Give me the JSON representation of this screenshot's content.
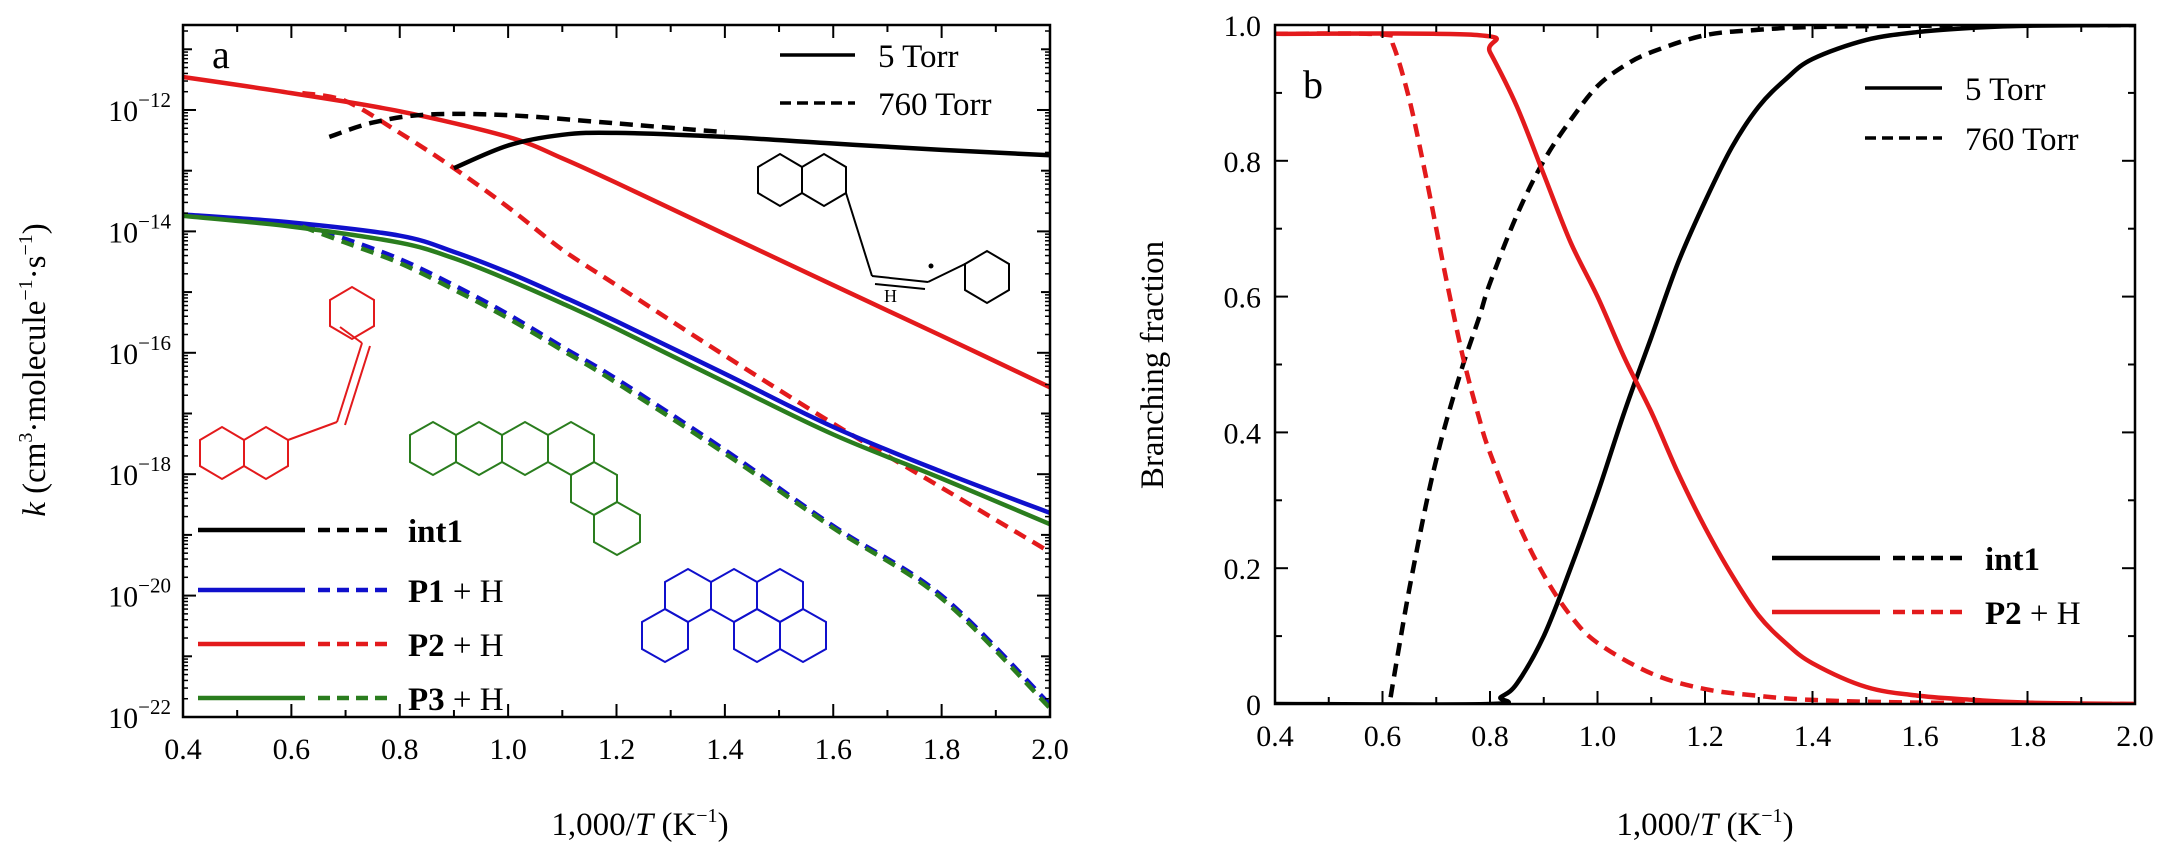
{
  "colors": {
    "int1": "#000000",
    "P1": "#1010cc",
    "P2": "#e31a1c",
    "P3": "#2a7d1e"
  },
  "chart_data": [
    {
      "panel_label": "a",
      "type": "line",
      "xlabel": {
        "pre": "1,000/",
        "ital": "T",
        "unit": " (K",
        "sup": "−1",
        "post": ")"
      },
      "ylabel": {
        "ital": "k",
        "pre": " (cm",
        "sup1": "3",
        "mid1": "·molecule",
        "sup2": "−1",
        "mid2": "·s",
        "sup3": "−1",
        "post": ")"
      },
      "xlim": [
        0.4,
        2.0
      ],
      "ylim": [
        -22,
        -10.6
      ],
      "yscale": "log",
      "xticks": [
        "0.4",
        "0.6",
        "0.8",
        "1.0",
        "1.2",
        "1.4",
        "1.6",
        "1.8",
        "2.0"
      ],
      "yticks": [
        {
          "base": "10",
          "exp": "−12",
          "log": -12
        },
        {
          "base": "10",
          "exp": "−14",
          "log": -14
        },
        {
          "base": "10",
          "exp": "−16",
          "log": -16
        },
        {
          "base": "10",
          "exp": "−18",
          "log": -18
        },
        {
          "base": "10",
          "exp": "−20",
          "log": -20
        },
        {
          "base": "10",
          "exp": "−22",
          "log": -22
        }
      ],
      "style_legend": [
        {
          "style": "solid",
          "label": "5 Torr"
        },
        {
          "style": "dashed",
          "label": "760 Torr"
        }
      ],
      "species_legend": [
        {
          "key": "int1",
          "bold": "int1",
          "rest": ""
        },
        {
          "key": "P1",
          "bold": "P1",
          "rest": " + H"
        },
        {
          "key": "P2",
          "bold": "P2",
          "rest": " + H"
        },
        {
          "key": "P3",
          "bold": "P3",
          "rest": " + H"
        }
      ],
      "structure_text": "H",
      "series": [
        {
          "key": "P2",
          "style": "solid",
          "x": [
            0.4,
            0.6,
            0.8,
            1.0,
            1.1,
            1.2,
            1.4,
            1.6,
            1.8,
            2.0
          ],
          "y": [
            3.5e-12,
            1.9e-12,
            9.5e-13,
            3.6e-13,
            1.6e-13,
            6.3e-14,
            9e-15,
            1.3e-15,
            1.9e-16,
            2.7e-17
          ]
        },
        {
          "key": "P2",
          "style": "dashed",
          "x": [
            0.62,
            0.7,
            0.8,
            0.9,
            1.0,
            1.1,
            1.2,
            1.4,
            1.6,
            1.8,
            2.0
          ],
          "y": [
            1.9e-12,
            1.4e-12,
            4.2e-13,
            1.1e-13,
            2.5e-14,
            5e-15,
            1.3e-15,
            9e-17,
            6.8e-18,
            6e-19,
            5.2e-20
          ]
        },
        {
          "key": "int1",
          "style": "solid",
          "x": [
            0.9,
            1.0,
            1.1,
            1.2,
            1.4,
            1.6,
            1.8,
            2.0
          ],
          "y": [
            1.1e-13,
            2.6e-13,
            3.9e-13,
            4.2e-13,
            3.6e-13,
            2.8e-13,
            2.2e-13,
            1.8e-13
          ]
        },
        {
          "key": "int1",
          "style": "dashed",
          "x": [
            0.67,
            0.75,
            0.85,
            1.0,
            1.2,
            1.4
          ],
          "y": [
            3.6e-13,
            6.2e-13,
            8.4e-13,
            8.2e-13,
            6e-13,
            4.3e-13
          ]
        },
        {
          "key": "P1",
          "style": "solid",
          "x": [
            0.4,
            0.6,
            0.8,
            0.9,
            1.0,
            1.1,
            1.2,
            1.4,
            1.6,
            1.8,
            2.0
          ],
          "y": [
            1.9e-14,
            1.4e-14,
            8.5e-15,
            4.6e-15,
            2.1e-15,
            8.5e-16,
            3.3e-16,
            4.5e-17,
            6e-18,
            1.1e-18,
            2.3e-19
          ]
        },
        {
          "key": "P1",
          "style": "dashed",
          "x": [
            0.62,
            0.7,
            0.8,
            0.9,
            1.0,
            1.1,
            1.2,
            1.4,
            1.6,
            1.8,
            2.0
          ],
          "y": [
            1.3e-14,
            7.5e-15,
            3.5e-15,
            1.3e-15,
            4.3e-16,
            1.25e-16,
            3.7e-17,
            2.5e-18,
            1.4e-19,
            1e-20,
            1.6e-22
          ]
        },
        {
          "key": "P3",
          "style": "solid",
          "x": [
            0.4,
            0.6,
            0.8,
            0.9,
            1.0,
            1.1,
            1.2,
            1.4,
            1.6,
            1.8,
            2.0
          ],
          "y": [
            1.8e-14,
            1.2e-14,
            6.5e-15,
            3.6e-15,
            1.6e-15,
            6.5e-16,
            2.5e-16,
            3.3e-17,
            4.5e-18,
            8.5e-19,
            1.5e-19
          ]
        },
        {
          "key": "P3",
          "style": "dashed",
          "x": [
            0.62,
            0.7,
            0.8,
            0.9,
            1.0,
            1.1,
            1.2,
            1.4,
            1.6,
            1.8,
            2.0
          ],
          "y": [
            1.2e-14,
            6.5e-15,
            3e-15,
            1.1e-15,
            3.7e-16,
            1.1e-16,
            3.2e-17,
            2.2e-18,
            1.3e-19,
            9e-21,
            1.4e-22
          ]
        }
      ]
    },
    {
      "panel_label": "b",
      "type": "line",
      "xlabel": {
        "pre": "1,000/",
        "ital": "T",
        "unit": " (K",
        "sup": "−1",
        "post": ")"
      },
      "ylabel": "Branching fraction",
      "xlim": [
        0.4,
        2.0
      ],
      "ylim": [
        0,
        1.0
      ],
      "xticks": [
        "0.4",
        "0.6",
        "0.8",
        "1.0",
        "1.2",
        "1.4",
        "1.6",
        "1.8",
        "2.0"
      ],
      "yticks": [
        "0",
        "0.2",
        "0.4",
        "0.6",
        "0.8",
        "1.0"
      ],
      "style_legend": [
        {
          "style": "solid",
          "label": "5 Torr"
        },
        {
          "style": "dashed",
          "label": "760 Torr"
        }
      ],
      "species_legend": [
        {
          "key": "int1",
          "bold": "int1",
          "rest": ""
        },
        {
          "key": "P2",
          "bold": "P2",
          "rest": " + H"
        }
      ],
      "series": [
        {
          "key": "int1",
          "style": "solid",
          "x": [
            0.4,
            0.8,
            0.82,
            0.85,
            0.9,
            0.95,
            1.0,
            1.05,
            1.1,
            1.15,
            1.2,
            1.25,
            1.3,
            1.35,
            1.4,
            1.5,
            1.6,
            1.7,
            1.8,
            2.0
          ],
          "y": [
            0,
            0,
            0.01,
            0.03,
            0.1,
            0.2,
            0.31,
            0.43,
            0.54,
            0.65,
            0.74,
            0.82,
            0.88,
            0.92,
            0.95,
            0.978,
            0.99,
            0.996,
            0.999,
            1.0
          ]
        },
        {
          "key": "int1",
          "style": "dashed",
          "x": [
            0.615,
            0.63,
            0.65,
            0.68,
            0.7,
            0.72,
            0.75,
            0.78,
            0.8,
            0.85,
            0.9,
            0.95,
            1.0,
            1.05,
            1.1,
            1.2,
            1.3,
            1.4,
            1.6,
            2.0
          ],
          "y": [
            0.01,
            0.08,
            0.17,
            0.29,
            0.36,
            0.42,
            0.5,
            0.57,
            0.62,
            0.72,
            0.8,
            0.86,
            0.91,
            0.94,
            0.96,
            0.985,
            0.993,
            0.997,
            0.999,
            1.0
          ]
        },
        {
          "key": "P2",
          "style": "solid",
          "x": [
            0.4,
            0.78,
            0.8,
            0.85,
            0.9,
            0.95,
            1.0,
            1.05,
            1.1,
            1.15,
            1.2,
            1.25,
            1.3,
            1.35,
            1.4,
            1.5,
            1.6,
            1.7,
            1.8,
            2.0
          ],
          "y": [
            0.987,
            0.985,
            0.96,
            0.88,
            0.78,
            0.68,
            0.6,
            0.51,
            0.43,
            0.34,
            0.26,
            0.19,
            0.13,
            0.09,
            0.06,
            0.025,
            0.012,
            0.006,
            0.002,
            0.0
          ]
        },
        {
          "key": "P2",
          "style": "dashed",
          "x": [
            0.4,
            0.6,
            0.62,
            0.65,
            0.68,
            0.7,
            0.72,
            0.75,
            0.78,
            0.8,
            0.85,
            0.9,
            0.95,
            1.0,
            1.1,
            1.2,
            1.3,
            1.4,
            1.6,
            2.0
          ],
          "y": [
            0.987,
            0.986,
            0.97,
            0.89,
            0.78,
            0.7,
            0.62,
            0.51,
            0.42,
            0.37,
            0.27,
            0.19,
            0.13,
            0.09,
            0.045,
            0.022,
            0.012,
            0.006,
            0.002,
            0.0
          ]
        }
      ]
    }
  ]
}
